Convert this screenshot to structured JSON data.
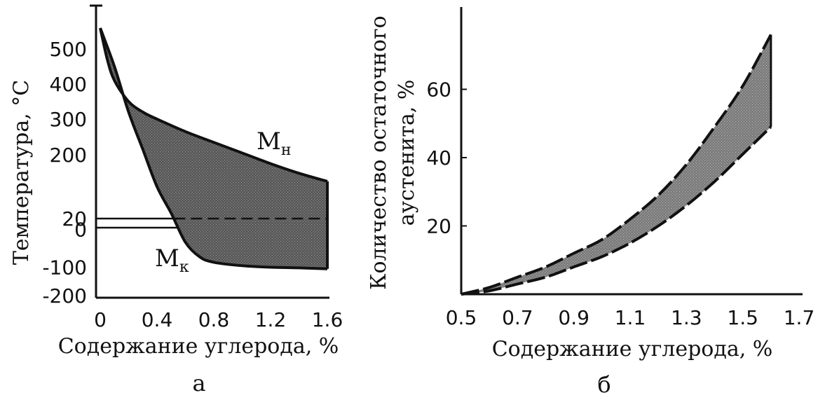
{
  "colors": {
    "ink": "#111111",
    "band_fill": "#6b6b6b",
    "band_fill_b": "#8a8a8a",
    "background": "#ffffff"
  },
  "chart_data": [
    {
      "type": "area",
      "panel_label": "а",
      "xlabel": "Содержание углерода, %",
      "ylabel": "Температура, °С",
      "xlim": [
        0,
        1.6
      ],
      "ylim": [
        -200,
        600
      ],
      "x_ticks": [
        "0",
        "0.4",
        "0.8",
        "1.2",
        "1.6"
      ],
      "x_tick_values": [
        0,
        0.4,
        0.8,
        1.2,
        1.6
      ],
      "y_ticks": [
        "500",
        "400",
        "300",
        "200",
        "20",
        "0",
        "-100",
        "-200"
      ],
      "y_tick_values": [
        500,
        400,
        300,
        200,
        20,
        0,
        -100,
        -200
      ],
      "y_tick_positions": [
        500,
        400,
        300,
        200,
        20,
        -5,
        -110,
        -200
      ],
      "grid": false,
      "series": [
        {
          "name": "Mн",
          "label_main": "M",
          "label_sub": "н",
          "x": [
            0,
            0.05,
            0.1,
            0.2,
            0.3,
            0.4,
            0.6,
            0.8,
            1.0,
            1.2,
            1.4,
            1.6
          ],
          "y": [
            560,
            470,
            410,
            350,
            320,
            300,
            265,
            235,
            205,
            175,
            148,
            125
          ]
        },
        {
          "name": "Mк",
          "label_main": "M",
          "label_sub": "к",
          "x": [
            0,
            0.1,
            0.2,
            0.3,
            0.4,
            0.5,
            0.6,
            0.7,
            0.8,
            1.0,
            1.2,
            1.4,
            1.6
          ],
          "y": [
            560,
            450,
            320,
            215,
            110,
            35,
            -40,
            -80,
            -95,
            -105,
            -110,
            -112,
            -115
          ]
        }
      ],
      "reference_lines": [
        {
          "y": 20,
          "style": "solid",
          "x_to": 0.55
        },
        {
          "y": 20,
          "style": "dashed",
          "x_from": 0.55,
          "x_to": 1.6
        },
        {
          "y": 0,
          "style": "solid",
          "x_to": 0.55
        }
      ]
    },
    {
      "type": "area",
      "panel_label": "б",
      "xlabel": "Содержание углерода, %",
      "ylabel_lines": [
        "Количество остаточного",
        "аустенита, %"
      ],
      "xlim": [
        0.5,
        1.7
      ],
      "ylim": [
        0,
        80
      ],
      "x_ticks": [
        "0.5",
        "0.7",
        "0.9",
        "1.1",
        "1.3",
        "1.5",
        "1.7"
      ],
      "x_tick_values": [
        0.5,
        0.7,
        0.9,
        1.1,
        1.3,
        1.5,
        1.7
      ],
      "y_ticks": [
        "20",
        "40",
        "60"
      ],
      "y_tick_values": [
        20,
        40,
        60
      ],
      "grid": false,
      "series": [
        {
          "name": "upper",
          "x": [
            0.5,
            0.6,
            0.7,
            0.8,
            0.9,
            1.0,
            1.1,
            1.2,
            1.3,
            1.4,
            1.5,
            1.6
          ],
          "y": [
            0,
            2,
            5,
            8,
            12,
            16,
            22,
            29,
            38,
            49,
            61,
            76
          ]
        },
        {
          "name": "lower",
          "x": [
            0.5,
            0.6,
            0.7,
            0.8,
            0.9,
            1.0,
            1.1,
            1.2,
            1.3,
            1.4,
            1.5,
            1.6
          ],
          "y": [
            0,
            1,
            3,
            5,
            8,
            11,
            15,
            20,
            26,
            33,
            41,
            49
          ]
        }
      ]
    }
  ]
}
